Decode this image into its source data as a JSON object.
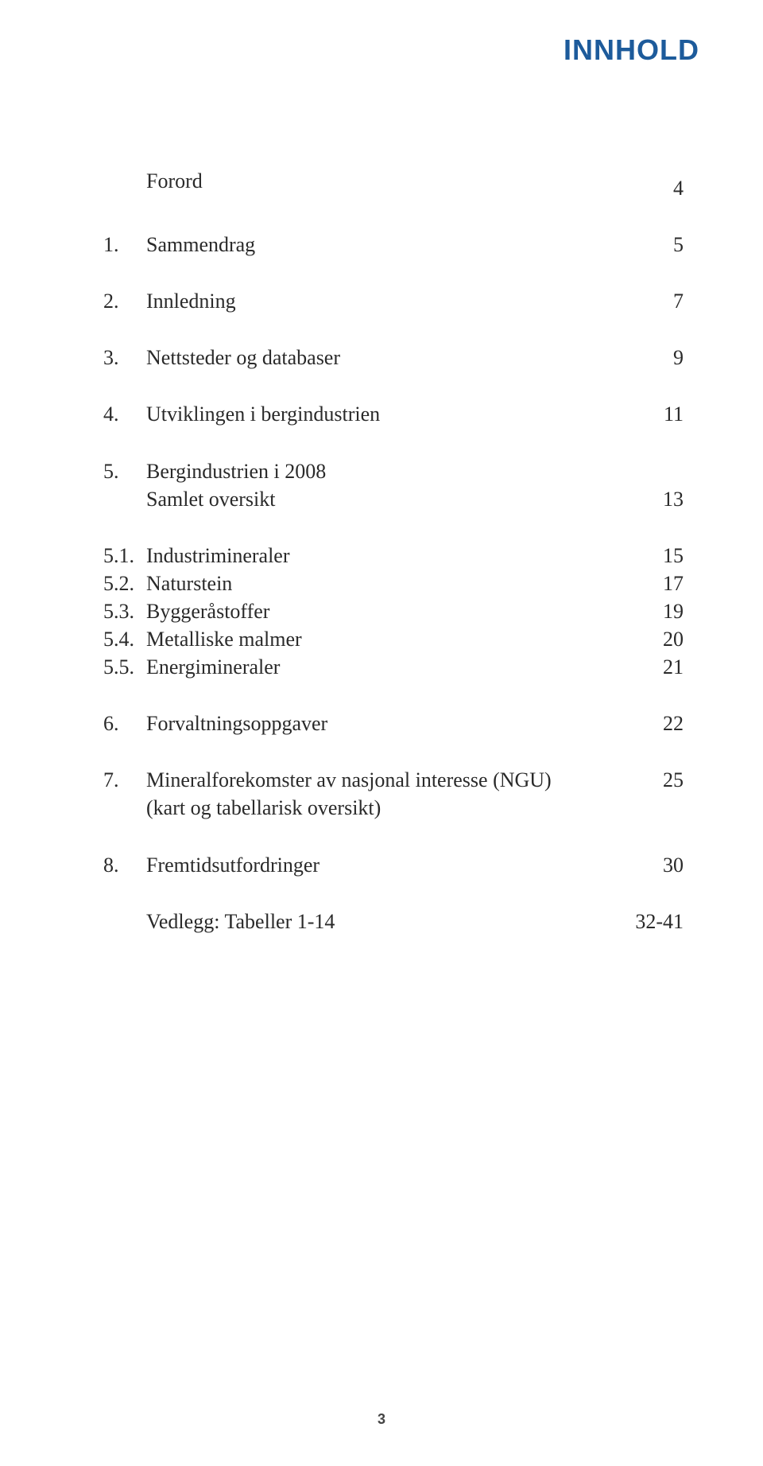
{
  "header": {
    "title": "INNHOLD",
    "title_color": "#1d5b9b",
    "title_fontsize": 36,
    "title_font": "Arial"
  },
  "toc": {
    "text_color": "#2a2a2a",
    "fontsize": 26,
    "entries": [
      {
        "num": "",
        "label": "Forord",
        "page": "4",
        "gap": "lg"
      },
      {
        "num": "1.",
        "label": "Sammendrag",
        "page": "5",
        "gap": "xl"
      },
      {
        "num": "2.",
        "label": "Innledning",
        "page": "7",
        "gap": "xl"
      },
      {
        "num": "3.",
        "label": "Nettsteder og databaser",
        "page": "9",
        "gap": "xl"
      },
      {
        "num": "4.",
        "label": "Utviklingen i bergindustrien",
        "page": "11",
        "gap": "xl"
      },
      {
        "num": "5.",
        "label": "Bergindustrien i 2008",
        "page": "",
        "gap": "xl"
      },
      {
        "num": "",
        "label": "Samlet oversikt",
        "page": "13",
        "gap": "",
        "indent": true
      },
      {
        "num": "5.1.",
        "label": "Industrimineraler",
        "page": "15",
        "gap": "xl",
        "sub": true
      },
      {
        "num": "5.2.",
        "label": "Naturstein",
        "page": "17",
        "gap": "",
        "sub": true
      },
      {
        "num": "5.3.",
        "label": "Byggeråstoffer",
        "page": "19",
        "gap": "",
        "sub": true
      },
      {
        "num": "5.4.",
        "label": "Metalliske malmer",
        "page": "20",
        "gap": "",
        "sub": true
      },
      {
        "num": "5.5.",
        "label": "Energimineraler",
        "page": "21",
        "gap": "",
        "sub": true
      },
      {
        "num": "6.",
        "label": "Forvaltningsoppgaver",
        "page": "22",
        "gap": "xl"
      },
      {
        "num": "7.",
        "label": "Mineralforekomster av nasjonal interesse (NGU)",
        "page": "25",
        "gap": "xl"
      },
      {
        "num": "",
        "label": "(kart og tabellarisk oversikt)",
        "page": "",
        "gap": "",
        "indent": true
      },
      {
        "num": "8.",
        "label": "Fremtidsutfordringer",
        "page": "30",
        "gap": "xl"
      },
      {
        "num": "",
        "label": "Vedlegg: Tabeller 1-14",
        "page": "32-41",
        "gap": "xl",
        "indent": true
      }
    ]
  },
  "footer": {
    "page_number": "3",
    "fontsize": 18,
    "color": "#444444"
  },
  "background_color": "#ffffff"
}
